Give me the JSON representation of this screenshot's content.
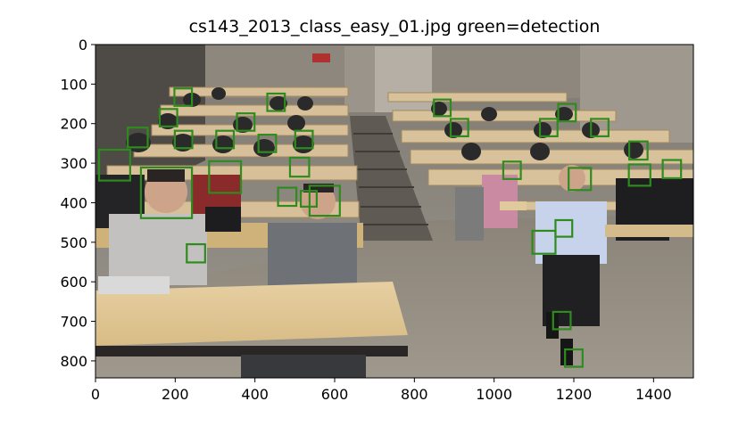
{
  "chart_data": {
    "type": "image",
    "title": "cs143_2013_class_easy_01.jpg green=detection",
    "xlabel": "",
    "ylabel": "",
    "xlim": [
      0,
      1500
    ],
    "ylim": [
      843,
      0
    ],
    "x_ticks": [
      0,
      200,
      400,
      600,
      800,
      1000,
      1200,
      1400
    ],
    "y_ticks": [
      0,
      100,
      200,
      300,
      400,
      500,
      600,
      700,
      800
    ],
    "box_color": "#2e8b1e",
    "detections": [
      {
        "x": 220,
        "y": 133,
        "w": 44,
        "h": 44
      },
      {
        "x": 453,
        "y": 146,
        "w": 44,
        "h": 44
      },
      {
        "x": 870,
        "y": 160,
        "w": 42,
        "h": 42
      },
      {
        "x": 1183,
        "y": 172,
        "w": 44,
        "h": 44
      },
      {
        "x": 183,
        "y": 185,
        "w": 44,
        "h": 44
      },
      {
        "x": 377,
        "y": 196,
        "w": 44,
        "h": 44
      },
      {
        "x": 913,
        "y": 210,
        "w": 44,
        "h": 44
      },
      {
        "x": 1137,
        "y": 210,
        "w": 44,
        "h": 44
      },
      {
        "x": 1265,
        "y": 210,
        "w": 44,
        "h": 44
      },
      {
        "x": 106,
        "y": 235,
        "w": 50,
        "h": 50
      },
      {
        "x": 221,
        "y": 240,
        "w": 44,
        "h": 44
      },
      {
        "x": 325,
        "y": 240,
        "w": 44,
        "h": 44
      },
      {
        "x": 431,
        "y": 250,
        "w": 44,
        "h": 44
      },
      {
        "x": 523,
        "y": 240,
        "w": 44,
        "h": 44
      },
      {
        "x": 1362,
        "y": 268,
        "w": 46,
        "h": 46
      },
      {
        "x": 48,
        "y": 305,
        "w": 78,
        "h": 78
      },
      {
        "x": 512,
        "y": 310,
        "w": 48,
        "h": 48
      },
      {
        "x": 1045,
        "y": 318,
        "w": 44,
        "h": 44
      },
      {
        "x": 1446,
        "y": 315,
        "w": 46,
        "h": 46
      },
      {
        "x": 325,
        "y": 335,
        "w": 80,
        "h": 80
      },
      {
        "x": 1215,
        "y": 340,
        "w": 56,
        "h": 56
      },
      {
        "x": 1365,
        "y": 330,
        "w": 54,
        "h": 54
      },
      {
        "x": 178,
        "y": 375,
        "w": 128,
        "h": 128
      },
      {
        "x": 481,
        "y": 385,
        "w": 46,
        "h": 46
      },
      {
        "x": 535,
        "y": 390,
        "w": 40,
        "h": 40
      },
      {
        "x": 575,
        "y": 395,
        "w": 76,
        "h": 76
      },
      {
        "x": 1175,
        "y": 465,
        "w": 42,
        "h": 42
      },
      {
        "x": 1125,
        "y": 500,
        "w": 58,
        "h": 58
      },
      {
        "x": 252,
        "y": 528,
        "w": 46,
        "h": 46
      },
      {
        "x": 1170,
        "y": 698,
        "w": 44,
        "h": 44
      },
      {
        "x": 1200,
        "y": 793,
        "w": 44,
        "h": 44
      }
    ]
  }
}
